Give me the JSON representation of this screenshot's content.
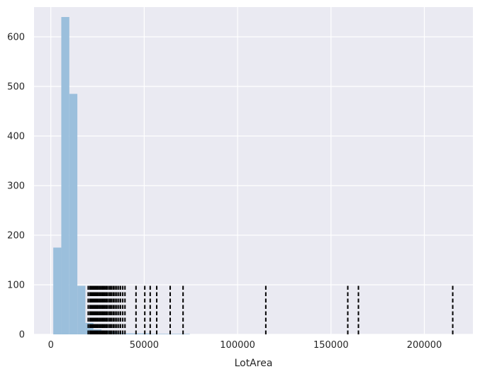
{
  "chart_data": {
    "type": "bar",
    "title": "",
    "xlabel": "LotArea",
    "ylabel": "",
    "xlim": [
      -9000,
      226000
    ],
    "ylim": [
      0,
      660
    ],
    "grid": true,
    "legend": "none",
    "x_ticks": [
      0,
      50000,
      100000,
      150000,
      200000
    ],
    "x_tick_labels": [
      "0",
      "50000",
      "100000",
      "150000",
      "200000"
    ],
    "y_ticks": [
      0,
      100,
      200,
      300,
      400,
      500,
      600
    ],
    "y_tick_labels": [
      "0",
      "100",
      "200",
      "300",
      "400",
      "500",
      "600"
    ],
    "histogram": {
      "bin_edges": [
        1300,
        5600,
        9900,
        14200,
        18500,
        22800,
        27100,
        31400,
        35700,
        40000,
        44300,
        48600,
        52900,
        57200,
        61500,
        65800,
        70100,
        74400
      ],
      "counts": [
        175,
        640,
        485,
        98,
        23,
        10,
        8,
        6,
        3,
        2,
        2,
        2,
        1,
        1,
        1,
        1,
        1
      ]
    },
    "vlines": {
      "style": "dashed",
      "y_range": [
        0,
        100
      ],
      "x": [
        20000,
        20900,
        21400,
        21900,
        22400,
        23000,
        23600,
        24100,
        24700,
        25300,
        26000,
        26600,
        27300,
        28000,
        28700,
        29400,
        30100,
        31000,
        31800,
        32600,
        33500,
        34400,
        35300,
        36300,
        37300,
        38500,
        39700,
        45600,
        50300,
        53200,
        56700,
        63900,
        70800,
        115100,
        159000,
        164700,
        215200
      ]
    }
  },
  "colors": {
    "background": "#eaeaf2",
    "grid": "#ffffff",
    "bar": "#9bbfdc",
    "vline": "#000000",
    "text": "#262626"
  }
}
